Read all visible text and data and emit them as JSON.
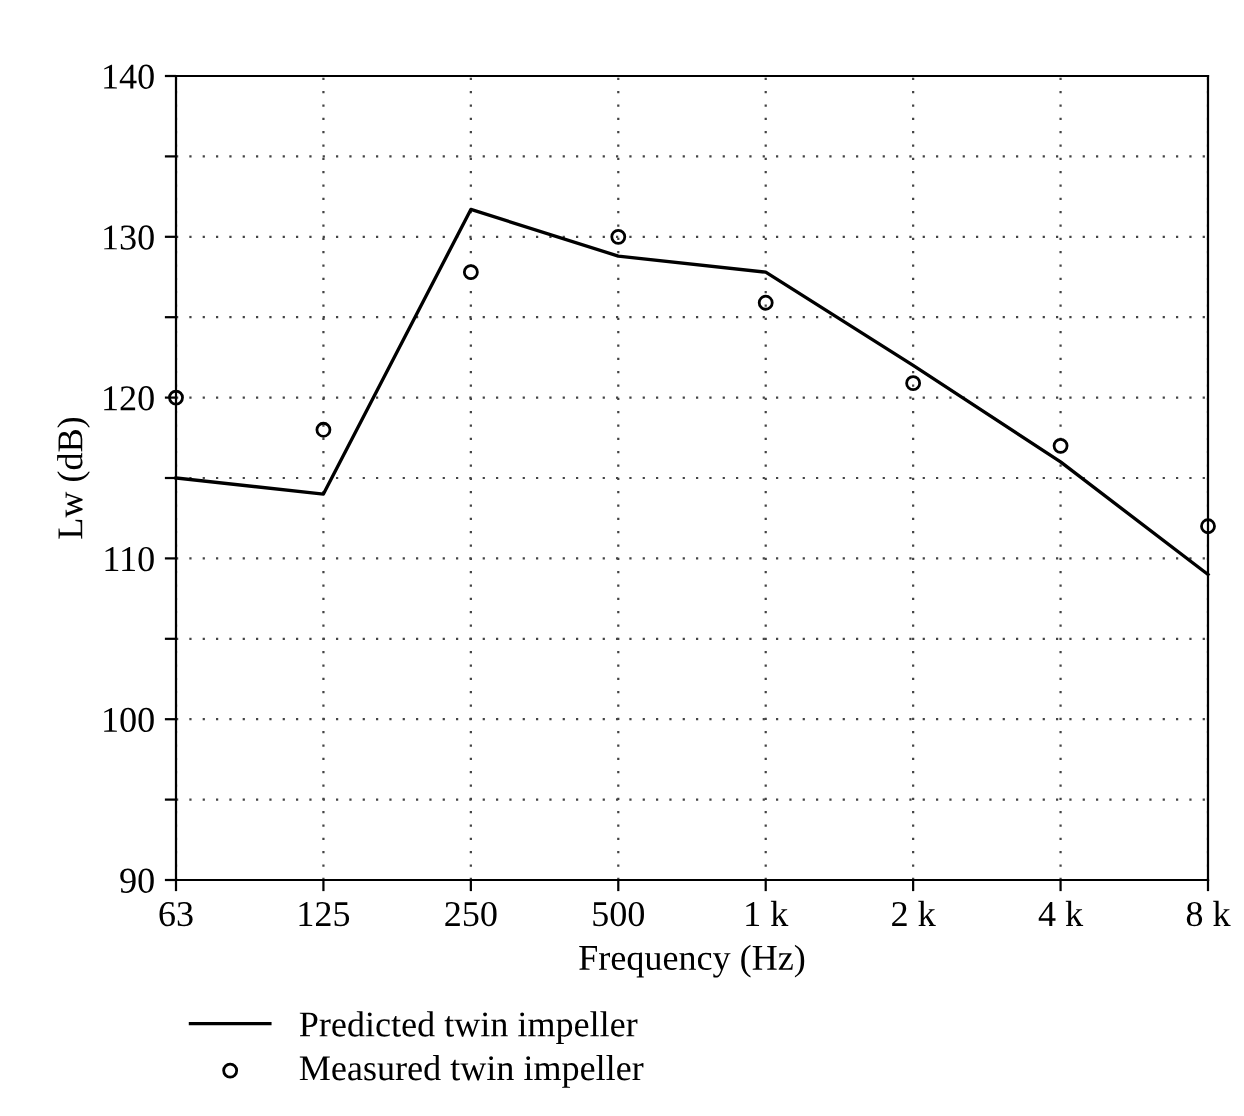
{
  "chart_data": {
    "type": "line",
    "xlabel": "Frequency (Hz)",
    "ylabel": "Lw (dB)",
    "categories": [
      "63",
      "125",
      "250",
      "500",
      "1 k",
      "2 k",
      "4 k",
      "8 k"
    ],
    "series": [
      {
        "name": "Predicted twin impeller",
        "color": "#000000",
        "marker": "none",
        "line_style": "solid",
        "values": [
          115,
          114,
          131.7,
          128.8,
          127.8,
          122,
          116,
          109
        ]
      },
      {
        "name": "Measured twin impeller",
        "type": "scatter",
        "color": "#000000",
        "marker": "circle",
        "values": [
          120,
          118,
          127.8,
          130,
          125.9,
          120.9,
          117,
          112
        ]
      }
    ],
    "ylim": [
      90,
      140
    ],
    "yticks": [
      90,
      {
        "value": 95,
        "label": null
      },
      100,
      {
        "value": 105,
        "label": null
      },
      110,
      {
        "value": 115,
        "label": null
      },
      120,
      {
        "value": 125,
        "label": null
      },
      130,
      {
        "value": 135,
        "label": null
      },
      140
    ],
    "grid": true,
    "legend": "bottom"
  }
}
